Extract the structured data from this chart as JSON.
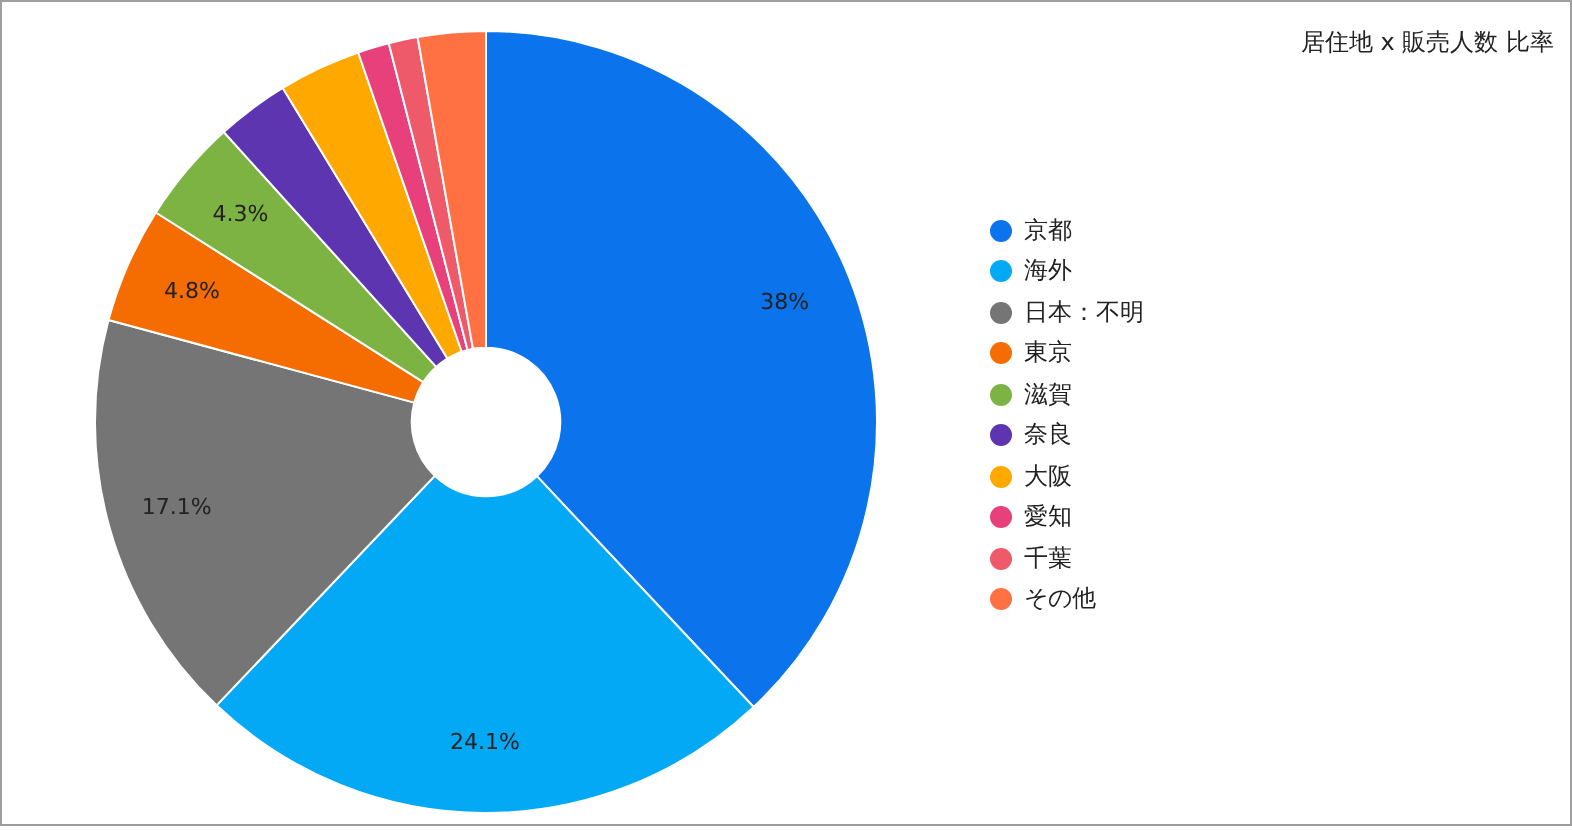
{
  "chart_data": {
    "type": "donut",
    "title": "居住地 x 販売人数 比率",
    "categories": [
      "京都",
      "海外",
      "日本：不明",
      "東京",
      "滋賀",
      "奈良",
      "大阪",
      "愛知",
      "千葉",
      "その他"
    ],
    "values": [
      38,
      24.1,
      17.1,
      4.8,
      4.3,
      3.0,
      3.4,
      1.3,
      1.2,
      2.8
    ],
    "colors": [
      "#0b73eb",
      "#03a9f4",
      "#757575",
      "#f56c00",
      "#7cb342",
      "#5e35b1",
      "#ffa800",
      "#e8407a",
      "#ef5a6a",
      "#ff7043"
    ],
    "value_labels": [
      "38%",
      "24.1%",
      "17.1%",
      "4.8%",
      "4.3%",
      null,
      null,
      null,
      null,
      null
    ],
    "legend": "right"
  }
}
